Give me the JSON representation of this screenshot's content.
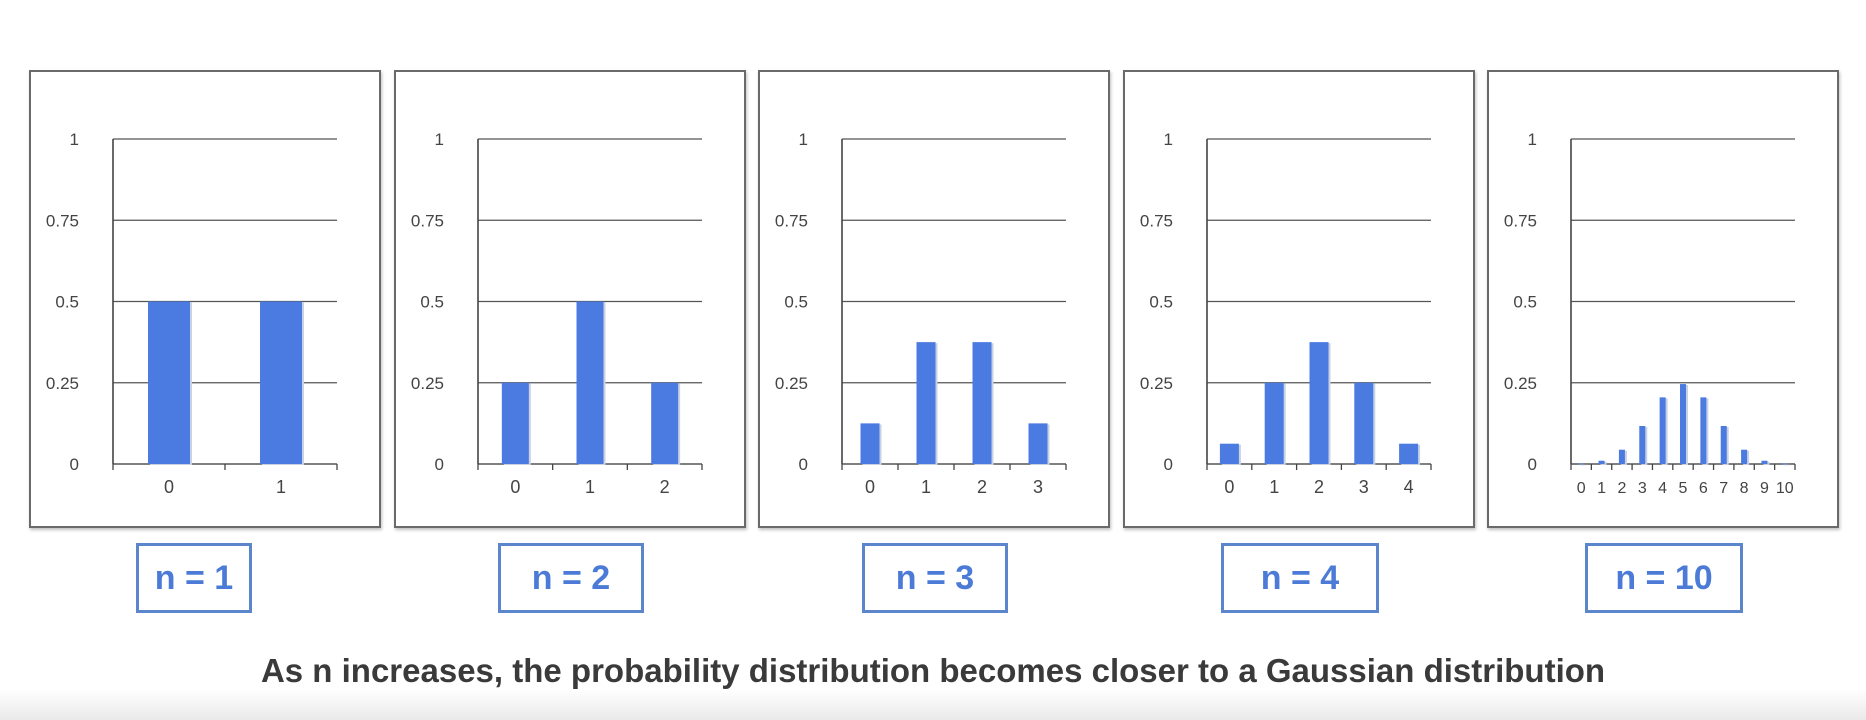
{
  "chart_data": [
    {
      "type": "bar",
      "categories": [
        "0",
        "1"
      ],
      "values": [
        0.5,
        0.5
      ],
      "ylim": [
        0,
        1
      ],
      "yticks": [
        "0",
        "0.25",
        "0.5",
        "0.75",
        "1"
      ],
      "grid": true,
      "label": "n = 1"
    },
    {
      "type": "bar",
      "categories": [
        "0",
        "1",
        "2"
      ],
      "values": [
        0.25,
        0.5,
        0.25
      ],
      "ylim": [
        0,
        1
      ],
      "yticks": [
        "0",
        "0.25",
        "0.5",
        "0.75",
        "1"
      ],
      "grid": true,
      "label": "n = 2"
    },
    {
      "type": "bar",
      "categories": [
        "0",
        "1",
        "2",
        "3"
      ],
      "values": [
        0.125,
        0.375,
        0.375,
        0.125
      ],
      "ylim": [
        0,
        1
      ],
      "yticks": [
        "0",
        "0.25",
        "0.5",
        "0.75",
        "1"
      ],
      "grid": true,
      "label": "n = 3"
    },
    {
      "type": "bar",
      "categories": [
        "0",
        "1",
        "2",
        "3",
        "4"
      ],
      "values": [
        0.0625,
        0.25,
        0.375,
        0.25,
        0.0625
      ],
      "ylim": [
        0,
        1
      ],
      "yticks": [
        "0",
        "0.25",
        "0.5",
        "0.75",
        "1"
      ],
      "grid": true,
      "label": "n = 4"
    },
    {
      "type": "bar",
      "categories": [
        "0",
        "1",
        "2",
        "3",
        "4",
        "5",
        "6",
        "7",
        "8",
        "9",
        "10"
      ],
      "values": [
        0.001,
        0.01,
        0.044,
        0.117,
        0.205,
        0.246,
        0.205,
        0.117,
        0.044,
        0.01,
        0.001
      ],
      "ylim": [
        0,
        1
      ],
      "yticks": [
        "0",
        "0.25",
        "0.5",
        "0.75",
        "1"
      ],
      "grid": true,
      "label": "n = 10"
    }
  ],
  "caption": "As n increases, the probability distribution becomes closer to a Gaussian distribution",
  "colors": {
    "bar": "#4b7be0",
    "border": "#5b86cc",
    "label_text": "#4b7bd6",
    "grid": "#555555"
  }
}
